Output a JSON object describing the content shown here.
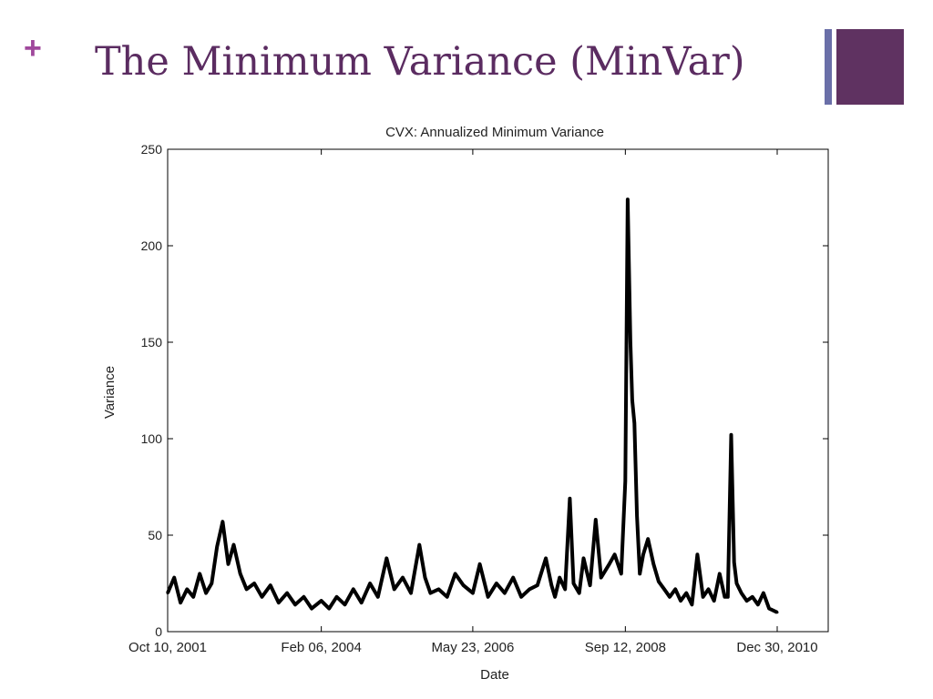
{
  "slide": {
    "bullet_symbol": "+",
    "title": "The Minimum Variance (MinVar)",
    "colors": {
      "title": "#5b2c61",
      "plus": "#a0489c",
      "deco_bar": "#6a6fa8",
      "deco_square": "#5f3261"
    }
  },
  "chart_data": {
    "type": "line",
    "title": "CVX: Annualized Minimum Variance",
    "xlabel": "Date",
    "ylabel": "Variance",
    "ylim": [
      0,
      250
    ],
    "yticks": [
      0,
      50,
      100,
      150,
      200,
      250
    ],
    "xticks": [
      "Oct 10, 2001",
      "Feb 06, 2004",
      "May 23, 2006",
      "Sep 12, 2008",
      "Dec 30, 2010"
    ],
    "grid": false,
    "line_color": "#000000",
    "series": [
      {
        "x": [
          "2001-10-10",
          "2001-11-15",
          "2001-12-20",
          "2002-01-25",
          "2002-03-01",
          "2002-04-05",
          "2002-05-10",
          "2002-06-10",
          "2002-07-10",
          "2002-08-10",
          "2002-09-10",
          "2002-10-10",
          "2002-11-15",
          "2002-12-20",
          "2003-02-01",
          "2003-03-15",
          "2003-05-01",
          "2003-06-15",
          "2003-08-01",
          "2003-09-15",
          "2003-11-01",
          "2003-12-15",
          "2004-02-06",
          "2004-03-20",
          "2004-05-01",
          "2004-06-15",
          "2004-08-01",
          "2004-09-15",
          "2004-11-01",
          "2004-12-15",
          "2005-02-01",
          "2005-03-15",
          "2005-05-01",
          "2005-06-15",
          "2005-08-01",
          "2005-09-01",
          "2005-10-01",
          "2005-11-15",
          "2006-01-01",
          "2006-02-15",
          "2006-04-01",
          "2006-05-23",
          "2006-07-01",
          "2006-08-15",
          "2006-10-01",
          "2006-11-15",
          "2007-01-01",
          "2007-02-15",
          "2007-04-01",
          "2007-05-15",
          "2007-07-01",
          "2007-08-01",
          "2007-08-20",
          "2007-09-15",
          "2007-10-15",
          "2007-11-10",
          "2007-12-01",
          "2008-01-01",
          "2008-01-25",
          "2008-03-01",
          "2008-04-01",
          "2008-05-01",
          "2008-06-15",
          "2008-07-15",
          "2008-08-20",
          "2008-09-12",
          "2008-09-25",
          "2008-10-10",
          "2008-10-20",
          "2008-11-01",
          "2008-11-15",
          "2008-12-01",
          "2008-12-20",
          "2009-01-15",
          "2009-02-15",
          "2009-03-15",
          "2009-04-15",
          "2009-05-15",
          "2009-06-15",
          "2009-07-15",
          "2009-08-15",
          "2009-09-15",
          "2009-10-15",
          "2009-11-15",
          "2009-12-15",
          "2010-01-15",
          "2010-02-15",
          "2010-03-15",
          "2010-04-01",
          "2010-04-20",
          "2010-05-06",
          "2010-05-20",
          "2010-06-15",
          "2010-07-15",
          "2010-08-15",
          "2010-09-15",
          "2010-10-15",
          "2010-11-15",
          "2010-12-30"
        ],
        "y": [
          20,
          28,
          15,
          22,
          18,
          30,
          20,
          25,
          44,
          57,
          35,
          45,
          30,
          22,
          25,
          18,
          24,
          15,
          20,
          14,
          18,
          12,
          16,
          12,
          18,
          14,
          22,
          15,
          25,
          18,
          38,
          22,
          28,
          20,
          45,
          28,
          20,
          22,
          18,
          30,
          24,
          20,
          35,
          18,
          25,
          20,
          28,
          18,
          22,
          24,
          38,
          24,
          18,
          28,
          22,
          69,
          25,
          20,
          38,
          24,
          58,
          28,
          35,
          40,
          30,
          78,
          224,
          150,
          120,
          108,
          60,
          30,
          40,
          48,
          35,
          26,
          22,
          18,
          22,
          16,
          20,
          14,
          40,
          18,
          22,
          16,
          30,
          18,
          18,
          102,
          36,
          25,
          20,
          16,
          18,
          14,
          20,
          12,
          10
        ]
      }
    ]
  }
}
